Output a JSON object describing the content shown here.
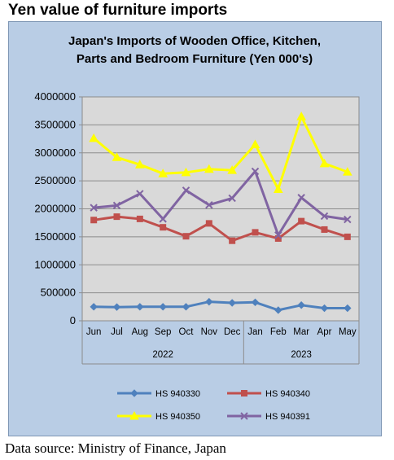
{
  "page_title": "Yen value of furniture imports",
  "source_note": "Data source: Ministry of Finance, Japan",
  "chart_data": {
    "type": "line",
    "title_lines": [
      "Japan's Imports of  Wooden  Office, Kitchen,",
      "Parts and Bedroom Furniture (Yen 000's)"
    ],
    "categories": [
      "Jun",
      "Jul",
      "Aug",
      "Sep",
      "Oct",
      "Nov",
      "Dec",
      "Jan",
      "Feb",
      "Mar",
      "Apr",
      "May"
    ],
    "year_groups": [
      {
        "label": "2022",
        "span": [
          0,
          6
        ]
      },
      {
        "label": "2023",
        "span": [
          7,
          11
        ]
      }
    ],
    "ylim": [
      0,
      4000000
    ],
    "yticks": [
      "0",
      "500000",
      "1000000",
      "1500000",
      "2000000",
      "2500000",
      "3000000",
      "3500000",
      "4000000"
    ],
    "grid": true,
    "legend_position": "bottom",
    "series": [
      {
        "name": "HS 940330",
        "color": "#4f81bd",
        "marker": "diamond",
        "values": [
          250000,
          245000,
          250000,
          250000,
          250000,
          340000,
          320000,
          330000,
          190000,
          280000,
          225000,
          225000
        ]
      },
      {
        "name": "HS 940340",
        "color": "#c0504d",
        "marker": "square",
        "values": [
          1800000,
          1860000,
          1820000,
          1670000,
          1510000,
          1740000,
          1430000,
          1580000,
          1470000,
          1780000,
          1630000,
          1500000
        ]
      },
      {
        "name": "HS 940350",
        "color": "#ffff00",
        "marker": "triangle",
        "values": [
          3260000,
          2920000,
          2790000,
          2630000,
          2650000,
          2710000,
          2690000,
          3150000,
          2350000,
          3650000,
          2810000,
          2660000
        ]
      },
      {
        "name": "HS 940391",
        "color": "#8064a2",
        "marker": "x",
        "values": [
          2020000,
          2060000,
          2270000,
          1820000,
          2330000,
          2070000,
          2190000,
          2670000,
          1530000,
          2200000,
          1870000,
          1810000
        ]
      }
    ]
  }
}
